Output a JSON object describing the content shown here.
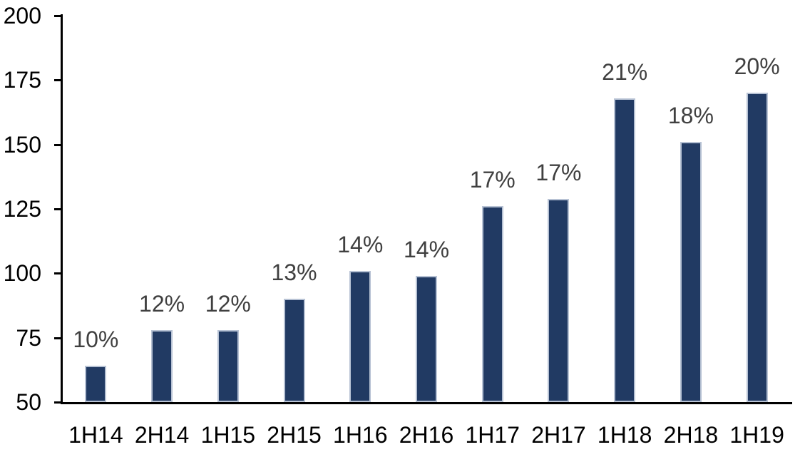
{
  "chart_data": {
    "type": "bar",
    "title": "",
    "xlabel": "",
    "ylabel": "",
    "categories": [
      "1H14",
      "2H14",
      "1H15",
      "2H15",
      "1H16",
      "2H16",
      "1H17",
      "2H17",
      "1H18",
      "2H18",
      "1H19"
    ],
    "values": [
      64,
      78,
      78,
      90,
      101,
      99,
      126,
      129,
      168,
      151,
      170
    ],
    "data_labels": [
      "10%",
      "12%",
      "12%",
      "13%",
      "14%",
      "14%",
      "17%",
      "17%",
      "21%",
      "18%",
      "20%"
    ],
    "ylim": [
      50,
      200
    ],
    "yticks": [
      50,
      75,
      100,
      125,
      150,
      175,
      200
    ],
    "grid": false,
    "legend": false,
    "colors": {
      "bar_fill": "#213a63",
      "bar_border": "#b7c2d4",
      "data_label": "#404040",
      "axis_text": "#000000",
      "axis_line": "#000000",
      "background": "#ffffff"
    }
  }
}
